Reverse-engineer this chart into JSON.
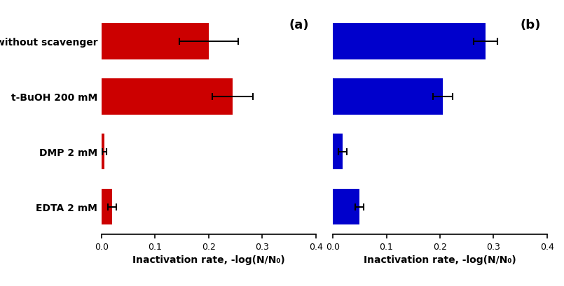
{
  "categories": [
    "without scavenger",
    "t-BuOH 200 mM",
    "DMP 2 mM",
    "EDTA 2 mM"
  ],
  "panel_a": {
    "values": [
      0.2,
      0.245,
      0.005,
      0.02
    ],
    "errors": [
      0.055,
      0.038,
      0.004,
      0.008
    ],
    "bar_color": "#CC0000",
    "label": "(a)"
  },
  "panel_b": {
    "values": [
      0.285,
      0.205,
      0.018,
      0.05
    ],
    "errors": [
      0.022,
      0.018,
      0.008,
      0.008
    ],
    "bar_color": "#0000CC",
    "label": "(b)"
  },
  "xlabel": "Inactivation rate, -log(N/N₀)",
  "xlim": [
    0.0,
    0.4
  ],
  "xticks": [
    0.0,
    0.1,
    0.2,
    0.3,
    0.4
  ],
  "background_color": "#ffffff",
  "label_fontsize": 10,
  "tick_fontsize": 9,
  "panel_label_fontsize": 13,
  "bar_height": 0.65
}
